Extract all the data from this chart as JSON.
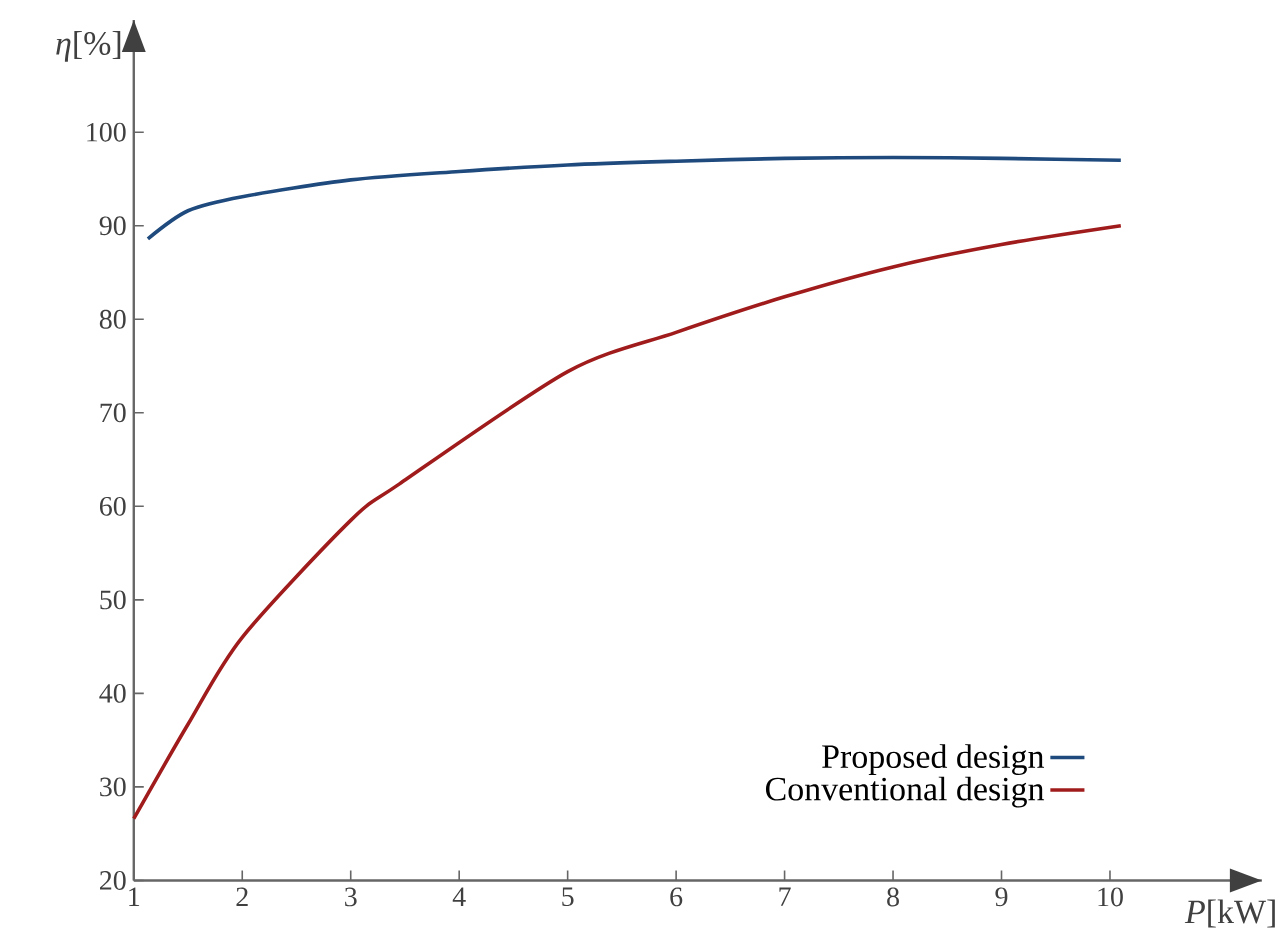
{
  "chart_data": {
    "type": "line",
    "xlabel": "*P*[kW]",
    "ylabel": "*η*[%]",
    "xlim": [
      1,
      11.4
    ],
    "ylim": [
      20,
      112
    ],
    "xticks": [
      1,
      2,
      3,
      4,
      5,
      6,
      7,
      8,
      9,
      10
    ],
    "yticks": [
      20,
      30,
      40,
      50,
      60,
      70,
      80,
      90,
      100
    ],
    "grid": false,
    "legend": "bottom right",
    "marker": "none",
    "line_style": "solid",
    "series": [
      {
        "name": "Proposed design",
        "color": "#1f4a7e",
        "x": [
          1.13,
          1.5,
          2,
          3,
          4,
          5,
          6,
          7,
          8,
          9,
          10.1
        ],
        "values": [
          88.6,
          91.6,
          93.1,
          94.9,
          95.8,
          96.5,
          96.9,
          97.2,
          97.3,
          97.2,
          97.0
        ]
      },
      {
        "name": "Conventional design",
        "color": "#a01c1c",
        "x": [
          1,
          1.5,
          2,
          3,
          3.45,
          5,
          6,
          7,
          8,
          9,
          10.1
        ],
        "values": [
          26.6,
          36.7,
          46.0,
          58.5,
          62.4,
          74.4,
          78.6,
          82.4,
          85.6,
          88.0,
          90.0
        ]
      }
    ]
  }
}
